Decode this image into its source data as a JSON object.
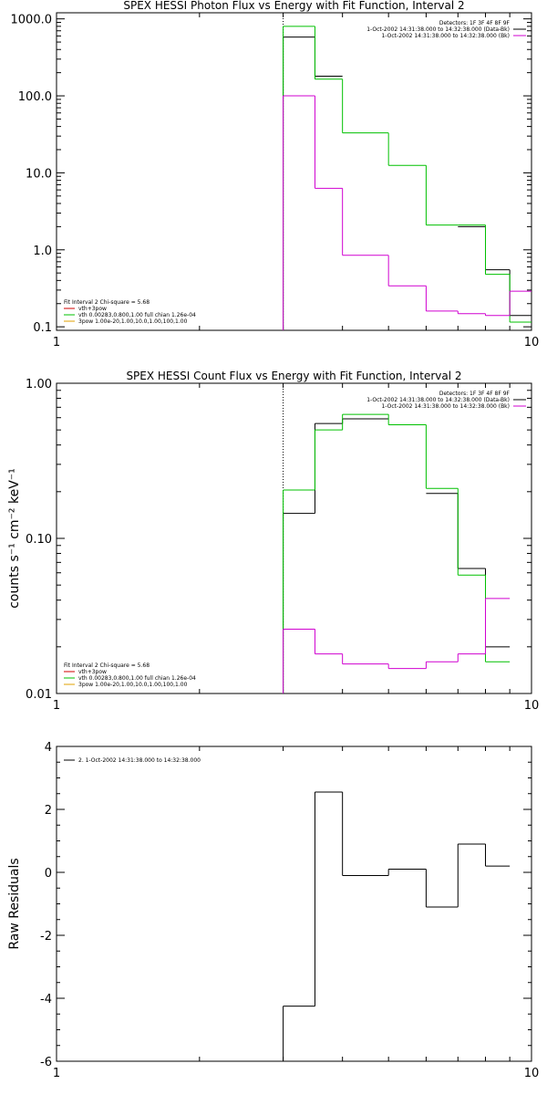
{
  "chart_data": [
    {
      "type": "line",
      "title": "SPEX HESSI Photon Flux vs Energy with Fit Function, Interval 2",
      "xscale": "log",
      "yscale": "log",
      "xlim": [
        1,
        10
      ],
      "ylim": [
        0.09,
        1200
      ],
      "xticks": [
        {
          "v": 1,
          "label": "1"
        },
        {
          "v": 10,
          "label": "10"
        }
      ],
      "yticks": [
        {
          "v": 0.1,
          "label": "0.1"
        },
        {
          "v": 1,
          "label": "1.0"
        },
        {
          "v": 10,
          "label": "10.0"
        },
        {
          "v": 100,
          "label": "100.0"
        },
        {
          "v": 1000,
          "label": "1000.0"
        }
      ],
      "ylabel": "",
      "vline": 3.0,
      "legend_top_right": [
        {
          "text": "Detectors: 1F 3F 4F 8F 9F",
          "color": ""
        },
        {
          "text": "1-Oct-2002 14:31:38.000 to 14:32:38.000 (Data-Bk)",
          "color": "#000000"
        },
        {
          "text": "1-Oct-2002 14:31:38.000 to 14:32:38.000 (Bk)",
          "color": "#d000d0"
        }
      ],
      "legend_bottom_left": [
        {
          "text": "Fit Interval 2   Chi-square = 5.68",
          "color": ""
        },
        {
          "text": "vth+3pow",
          "color": "#d00000"
        },
        {
          "text": "vth 0.00283,0.800,1.00   full chian 1.26e-04",
          "color": "#00c000"
        },
        {
          "text": "3pow 1.00e-20,1.00,10.0,1.00,100,1.00",
          "color": "#e0a000"
        }
      ],
      "series": [
        {
          "color": "#000000",
          "edges": [
            3.0,
            3.5,
            4.0,
            5.0,
            6.0,
            7.0,
            8.0,
            9.0,
            10.0
          ],
          "values": [
            580,
            180,
            null,
            null,
            null,
            2.0,
            0.55,
            0.14
          ]
        },
        {
          "color": "#00c000",
          "edges": [
            3.0,
            3.5,
            4.0,
            5.0,
            6.0,
            7.0,
            8.0,
            9.0,
            10.0
          ],
          "values": [
            800,
            165,
            33,
            12.5,
            2.1,
            2.1,
            0.48,
            0.115
          ]
        },
        {
          "color": "#d000d0",
          "edges": [
            3.0,
            3.5,
            4.0,
            5.0,
            6.0,
            7.0,
            8.0,
            9.0,
            10.0
          ],
          "values": [
            100,
            6.3,
            0.85,
            0.34,
            0.16,
            0.148,
            0.14,
            0.29
          ]
        }
      ]
    },
    {
      "type": "line",
      "title": "SPEX HESSI Count Flux vs Energy with Fit Function, Interval 2",
      "xscale": "log",
      "yscale": "log",
      "xlim": [
        1,
        10
      ],
      "ylim": [
        0.01,
        1.0
      ],
      "xticks": [
        {
          "v": 1,
          "label": "1"
        },
        {
          "v": 10,
          "label": "10"
        }
      ],
      "yticks": [
        {
          "v": 0.01,
          "label": "0.01"
        },
        {
          "v": 0.1,
          "label": "0.10"
        },
        {
          "v": 1.0,
          "label": "1.00"
        }
      ],
      "ylabel": "counts s⁻¹ cm⁻² keV⁻¹",
      "vline": 3.0,
      "legend_top_right": [
        {
          "text": "Detectors: 1F 3F 4F 8F 9F",
          "color": ""
        },
        {
          "text": "1-Oct-2002 14:31:38.000 to 14:32:38.000 (Data-Bk)",
          "color": "#000000"
        },
        {
          "text": "1-Oct-2002 14:31:38.000 to 14:32:38.000 (Bk)",
          "color": "#d000d0"
        }
      ],
      "legend_bottom_left": [
        {
          "text": "Fit Interval 2   Chi-square = 5.68",
          "color": ""
        },
        {
          "text": "vth+3pow",
          "color": "#d00000"
        },
        {
          "text": "vth 0.00283,0.800,1.00   full chian 1.26e-04",
          "color": "#00c000"
        },
        {
          "text": "3pow 1.00e-20,1.00,10.0,1.00,100,1.00",
          "color": "#e0a000"
        }
      ],
      "series": [
        {
          "color": "#000000",
          "edges": [
            3.0,
            3.5,
            4.0,
            5.0,
            6.0,
            7.0,
            8.0,
            9.0,
            10.0
          ],
          "values": [
            0.145,
            0.55,
            0.59,
            null,
            0.195,
            0.064,
            0.02,
            null
          ]
        },
        {
          "color": "#00c000",
          "edges": [
            3.0,
            3.5,
            4.0,
            5.0,
            6.0,
            7.0,
            8.0,
            9.0,
            10.0
          ],
          "values": [
            0.205,
            0.5,
            0.63,
            0.54,
            0.21,
            0.058,
            0.016,
            null
          ]
        },
        {
          "color": "#d000d0",
          "edges": [
            3.0,
            3.5,
            4.0,
            5.0,
            6.0,
            7.0,
            8.0,
            9.0,
            10.0
          ],
          "values": [
            0.026,
            0.018,
            0.0155,
            0.0145,
            0.016,
            0.018,
            0.041,
            null
          ]
        }
      ]
    },
    {
      "type": "line",
      "title": "",
      "xscale": "log",
      "yscale": "linear",
      "xlim": [
        1,
        10
      ],
      "ylim": [
        -6,
        4
      ],
      "xticks": [
        {
          "v": 1,
          "label": "1"
        },
        {
          "v": 10,
          "label": "10"
        }
      ],
      "yticks": [
        {
          "v": -6,
          "label": "-6"
        },
        {
          "v": -4,
          "label": "-4"
        },
        {
          "v": -2,
          "label": "-2"
        },
        {
          "v": 0,
          "label": "0"
        },
        {
          "v": 2,
          "label": "2"
        },
        {
          "v": 4,
          "label": "4"
        }
      ],
      "ylabel": "Raw Residuals",
      "legend_top_left": [
        {
          "text": "2.  1-Oct-2002 14:31:38.000 to 14:32:38.000",
          "color": "#000000"
        }
      ],
      "series": [
        {
          "color": "#000000",
          "edges": [
            3.0,
            3.5,
            4.0,
            5.0,
            6.0,
            7.0,
            8.0,
            9.0,
            10.0
          ],
          "values": [
            -4.25,
            2.55,
            -0.1,
            0.1,
            -1.1,
            0.9,
            0.2,
            null
          ]
        }
      ]
    }
  ]
}
